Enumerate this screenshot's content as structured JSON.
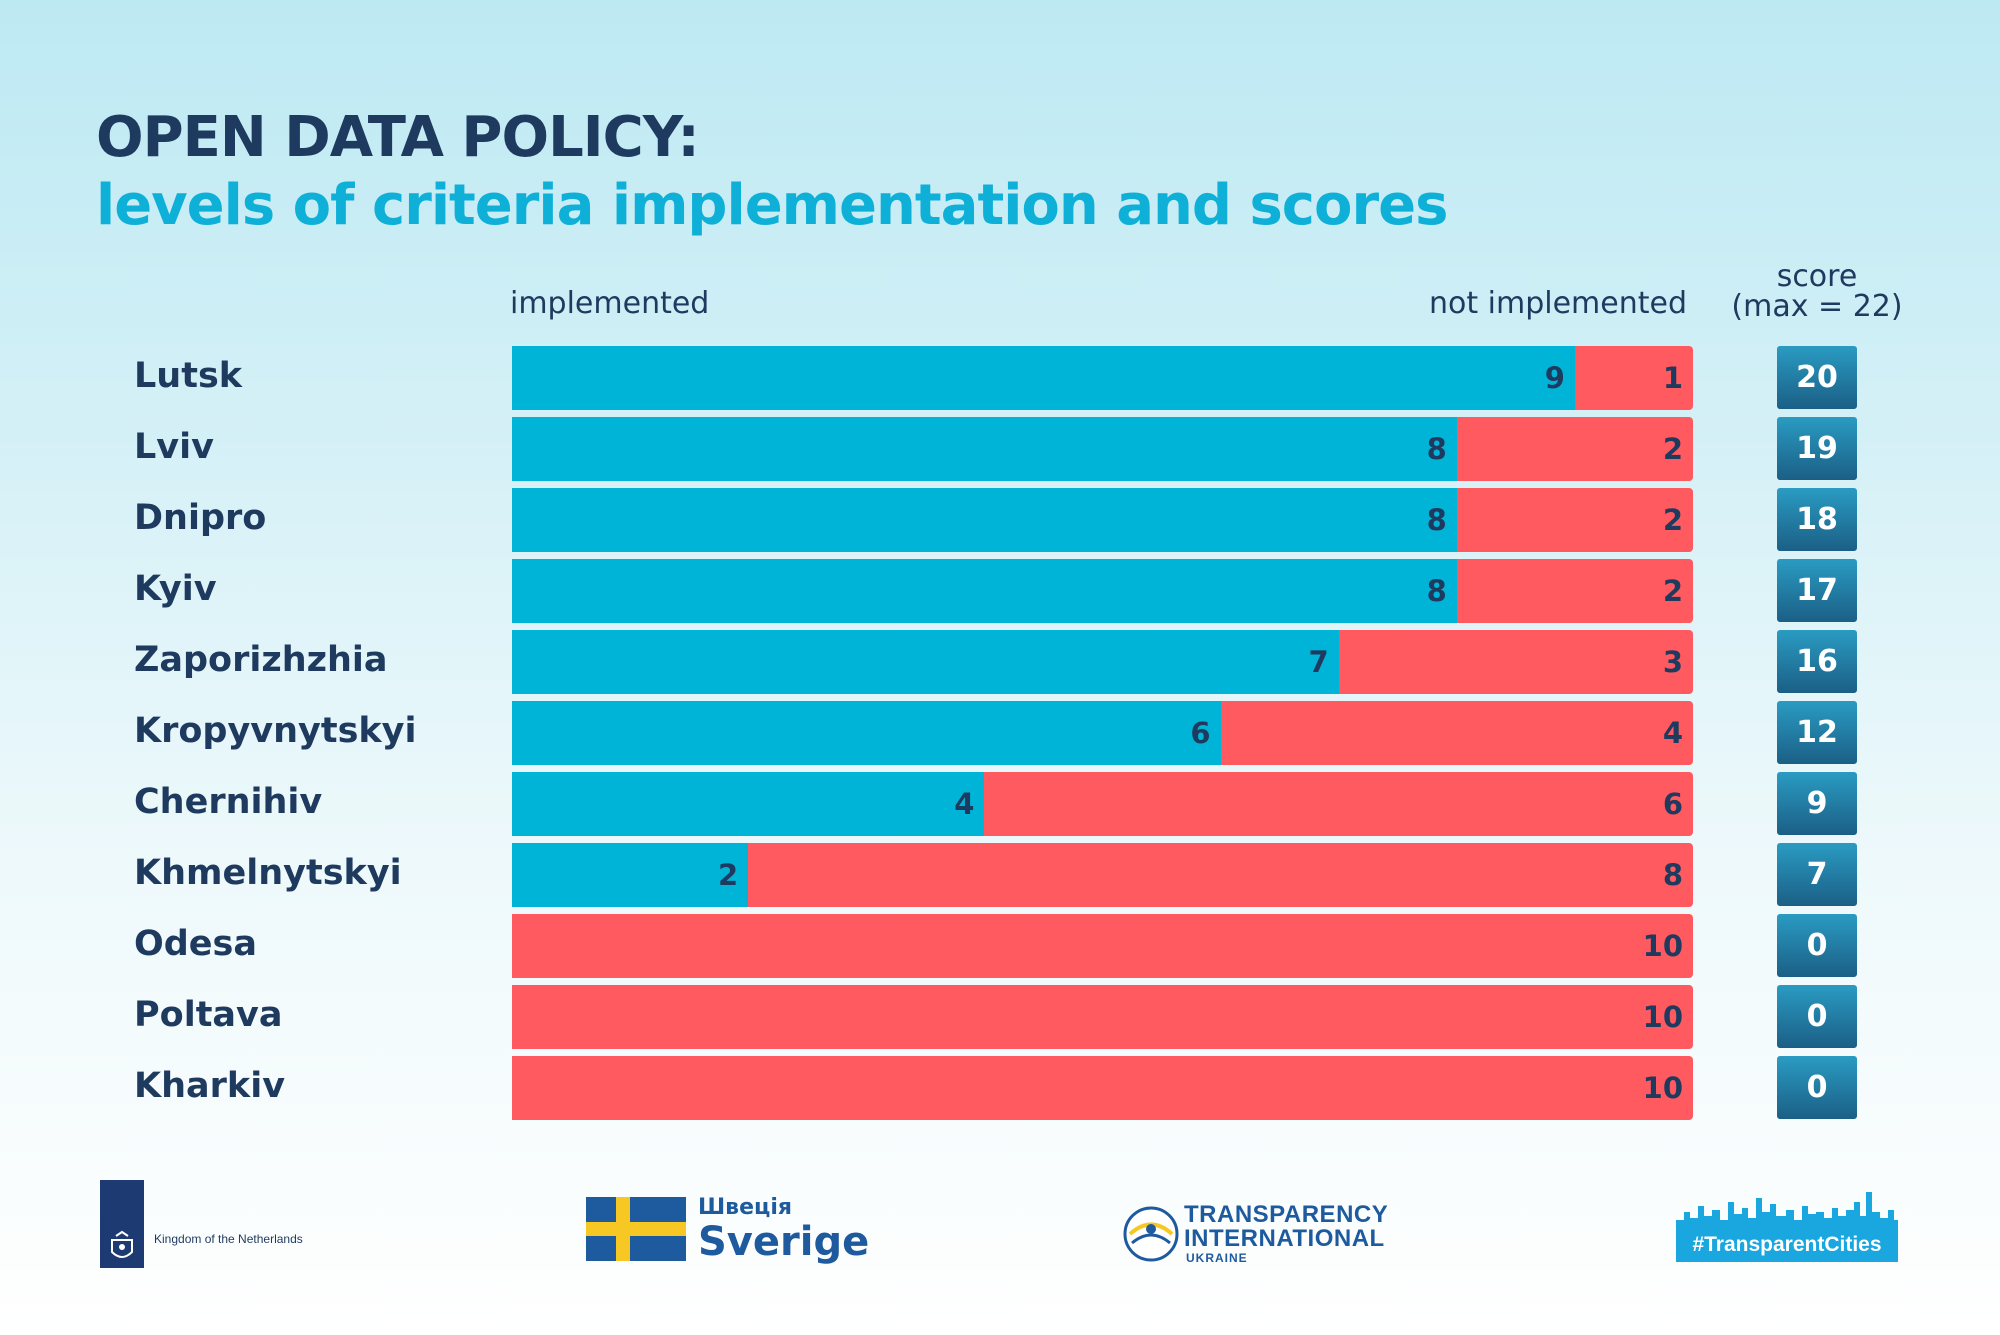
{
  "title": {
    "line1": "OPEN DATA POLICY:",
    "line2": "levels of criteria implementation and scores"
  },
  "headers": {
    "implemented": "implemented",
    "not_implemented": "not implemented",
    "score_line1": "score",
    "score_line2": "(max = 22)"
  },
  "colors": {
    "implemented": "#00b4d8",
    "not_implemented": "#ff5a5f",
    "title_dark": "#1e3a5f",
    "title_accent": "#0fb0d8"
  },
  "chart_data": {
    "type": "bar",
    "orientation": "horizontal",
    "stacked": true,
    "categories": [
      "Lutsk",
      "Lviv",
      "Dnipro",
      "Kyiv",
      "Zaporizhzhia",
      "Kropyvnytskyi",
      "Chernihiv",
      "Khmelnytskyi",
      "Odesa",
      "Poltava",
      "Kharkiv"
    ],
    "series": [
      {
        "name": "implemented",
        "values": [
          9,
          8,
          8,
          8,
          7,
          6,
          4,
          2,
          0,
          0,
          0
        ]
      },
      {
        "name": "not implemented",
        "values": [
          1,
          2,
          2,
          2,
          3,
          4,
          6,
          8,
          10,
          10,
          10
        ]
      }
    ],
    "scores": [
      20,
      19,
      18,
      17,
      16,
      12,
      9,
      7,
      0,
      0,
      0
    ],
    "score_max": 22,
    "xlim": [
      0,
      10
    ],
    "grid": false,
    "legend": "top"
  },
  "footer": {
    "netherlands": "Kingdom of the Netherlands",
    "sweden_ua": "Швеція",
    "sweden": "Sverige",
    "ti_line1": "TRANSPARENCY",
    "ti_line2": "INTERNATIONAL",
    "ti_line3": "UKRAINE",
    "hashtag": "#TransparentCities"
  }
}
